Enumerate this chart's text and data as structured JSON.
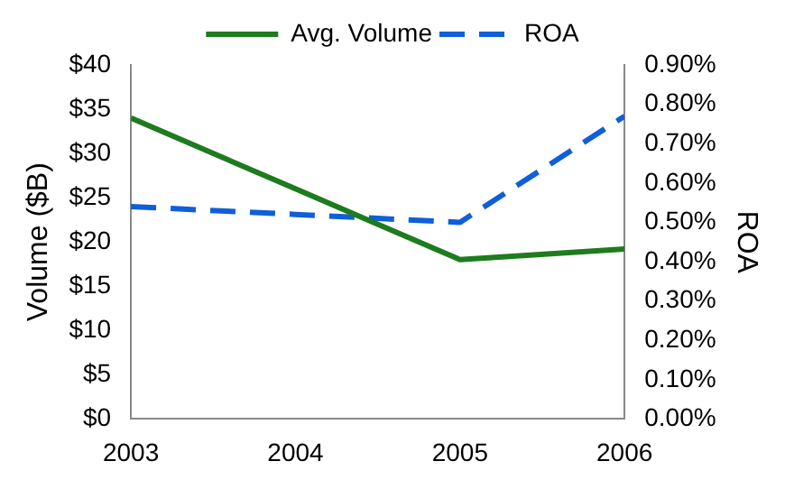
{
  "chart_data": {
    "type": "line",
    "xlabel": null,
    "ylabel": "Volume ($B)",
    "y2label": "ROA",
    "x": [
      2003,
      2004,
      2005,
      2006
    ],
    "series": [
      {
        "name": "Avg. Volume",
        "color": "#1e7b1e",
        "values": [
          34,
          26,
          18,
          19.2
        ],
        "line_style": "solid"
      },
      {
        "name": "ROA",
        "color": "#0f5fd9",
        "values": [
          0.54,
          0.52,
          0.5,
          0.77
        ],
        "axis": "y2",
        "line_style": "dashed"
      }
    ],
    "xlim": [
      2003,
      2006
    ],
    "xticks": [
      2003,
      2004,
      2005,
      2006
    ],
    "ylim": [
      0,
      40
    ],
    "yticks": [
      {
        "value": 0,
        "label": "$0"
      },
      {
        "value": 5,
        "label": "$5"
      },
      {
        "value": 10,
        "label": "$10"
      },
      {
        "value": 15,
        "label": "$15"
      },
      {
        "value": 20,
        "label": "$20"
      },
      {
        "value": 25,
        "label": "$25"
      },
      {
        "value": 30,
        "label": "$30"
      },
      {
        "value": 35,
        "label": "$35"
      },
      {
        "value": 40,
        "label": "$40"
      }
    ],
    "y2lim": [
      0,
      0.9
    ],
    "y2ticks": [
      {
        "value": 0,
        "label": "0.00%"
      },
      {
        "value": 0.1,
        "label": "0.10%"
      },
      {
        "value": 0.2,
        "label": "0.20%"
      },
      {
        "value": 0.3,
        "label": "0.30%"
      },
      {
        "value": 0.4,
        "label": "0.40%"
      },
      {
        "value": 0.5,
        "label": "0.50%"
      },
      {
        "value": 0.6,
        "label": "0.60%"
      },
      {
        "value": 0.7,
        "label": "0.70%"
      },
      {
        "value": 0.8,
        "label": "0.80%"
      },
      {
        "value": 0.9,
        "label": "0.90%"
      }
    ],
    "grid": false,
    "legend": "top",
    "marker": "none"
  }
}
